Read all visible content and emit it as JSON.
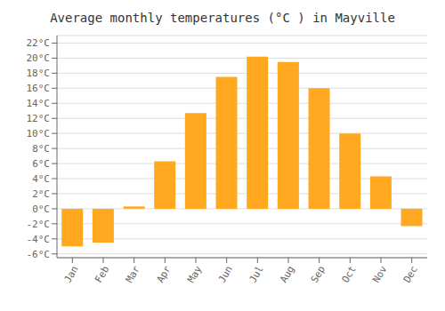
{
  "chart_data": {
    "type": "bar",
    "title": "Average monthly temperatures (°C ) in Mayville",
    "categories": [
      "Jan",
      "Feb",
      "Mar",
      "Apr",
      "May",
      "Jun",
      "Jul",
      "Aug",
      "Sep",
      "Oct",
      "Nov",
      "Dec"
    ],
    "values": [
      -5.0,
      -4.5,
      0.3,
      6.3,
      12.7,
      17.5,
      20.2,
      19.5,
      16.0,
      10.0,
      4.3,
      -2.3
    ],
    "color": "#FFA820",
    "ylim": [
      -6.5,
      23
    ],
    "yticks": [
      {
        "value": -6,
        "label": "-6°C"
      },
      {
        "value": -4,
        "label": "-4°C"
      },
      {
        "value": -2,
        "label": "-2°C"
      },
      {
        "value": 0,
        "label": "0°C"
      },
      {
        "value": 2,
        "label": "2°C"
      },
      {
        "value": 4,
        "label": "4°C"
      },
      {
        "value": 6,
        "label": "6°C"
      },
      {
        "value": 8,
        "label": "8°C"
      },
      {
        "value": 10,
        "label": "10°C"
      },
      {
        "value": 12,
        "label": "12°C"
      },
      {
        "value": 14,
        "label": "14°C"
      },
      {
        "value": 16,
        "label": "16°C"
      },
      {
        "value": 18,
        "label": "18°C"
      },
      {
        "value": 20,
        "label": "20°C"
      },
      {
        "value": 22,
        "label": "22°C"
      }
    ],
    "grid": true
  }
}
